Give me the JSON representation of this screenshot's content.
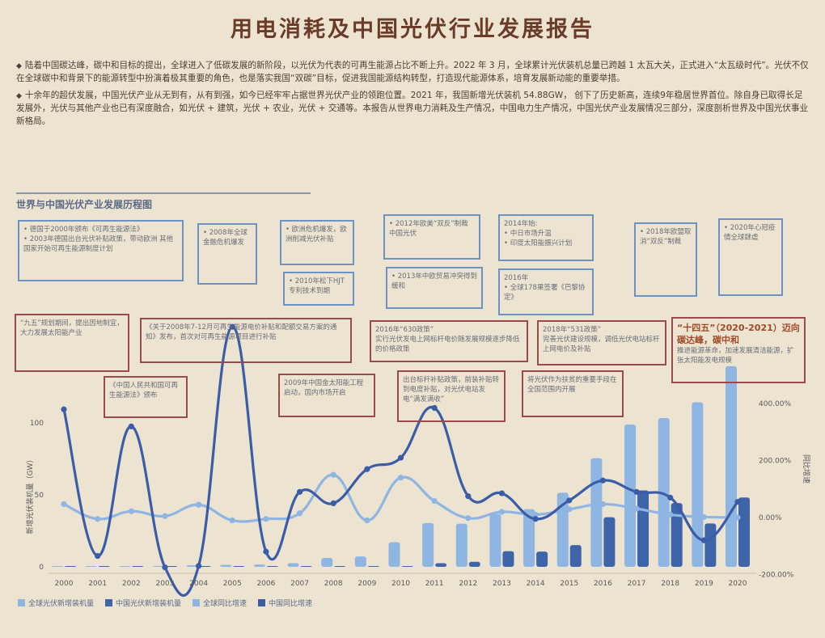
{
  "title": "用电消耗及中国光伏行业发展报告",
  "intro": {
    "para1": "陆着中国碳达峰，碳中和目标的提出，全球进入了低碳发展的新阶段，以光伏为代表的可再生能源占比不断上升。2022 年 3 月，全球累计光伏装机总量已跨越 1 太瓦大关，正式进入“太瓦级时代”。光伏不仅在全球碳中和背景下的能源转型中扮演着极其重要的角色，也是落实我国“双碳”目标，促进我国能源结构转型，打造现代能源体系，培育发展新动能的重要举措。",
    "para2": "十余年的超伏发展，中国光伏产业从无到有，从有到强，如今已经牢牢占据世界光伏产业的领跑位置。2021 年，我国新增光伏装机 54.88GW， 创下了历史新高，连续9年稳居世界首位。除自身已取得长足发展外，光伏与其他产业也已有深度融合，如光伏 + 建筑，光伏 + 农业，光伏 + 交通等。本报告从世界电力消耗及生产情况，中国电力生产情况，中国光伏产业发展情况三部分，深度剖析世界及中国光伏事业新格局。"
  },
  "section_title": "世界与中国光伏产业发展历程图",
  "blue_boxes": [
    {
      "lines": [
        "• 德国于2000年颁布《可再生能源法》",
        "• 2003年德国出台光伏补贴政策，带动欧洲 其他国家开始可再生能源制度计划"
      ]
    },
    {
      "lines": [
        "• 2008年全球金融危机爆发"
      ]
    },
    {
      "lines": [
        "• 欧洲危机爆发，欧洲削减光伏补贴"
      ]
    },
    {
      "lines": [
        "• 2010年松下HJT专利技术到期"
      ]
    },
    {
      "lines": [
        "• 2012年欧美“双反”制裁中国光伏"
      ]
    },
    {
      "lines": [
        "• 2013年中欧贸易冲突得到缓和"
      ]
    },
    {
      "lines": [
        "2014年始:",
        "• 中日市场升温",
        "• 印度太阳能振兴计划"
      ]
    },
    {
      "lines": [
        "2016年",
        "• 全球178果签署《巴黎协定》"
      ]
    },
    {
      "lines": [
        "• 2018年欧盟取消“双反”制裁"
      ]
    },
    {
      "lines": [
        "• 2020年心冠疫情全球肆虐"
      ]
    }
  ],
  "red_boxes": [
    {
      "lines": [
        "“九五”规划期间，提出因地制宜，大力发展太阳能产业"
      ]
    },
    {
      "lines": [
        "《关于2008年7-12月可再生能源电价补贴和配额交易方案的通知》发布，首次对可再生能源项目进行补贴"
      ]
    },
    {
      "lines": [
        "《中国人民共和国可再生能源法》颁布"
      ]
    },
    {
      "lines": [
        "2009年中国金太阳能工程启动，国内市场开启"
      ]
    },
    {
      "lines": [
        "2016年“630政策”",
        "实行光伏发电上网标杆电价随发展规模逐步降低的价格政策"
      ]
    },
    {
      "lines": [
        "出台标杆补贴政策，前装补贴转到电度补贴，对光伏电站发电“满发满收”"
      ]
    },
    {
      "lines": [
        "2018年“531政策”",
        "完善光伏建设规模，调低光伏电站标杆上网电价及补贴"
      ]
    },
    {
      "lines": [
        "将光伏作为扶贫的重要手段在全国范围内开展"
      ]
    },
    {
      "headline": "“十四五”（2020-2021）迈向碳达峰，碳中和",
      "lines": [
        "推进能源革命，加速发展清洁能源，扩张太阳能发电规模"
      ]
    }
  ],
  "chart_data": {
    "type": "bar",
    "categories": [
      "2000",
      "2001",
      "2002",
      "2003",
      "2004",
      "2005",
      "2006",
      "2007",
      "2008",
      "2009",
      "2010",
      "2011",
      "2012",
      "2013",
      "2014",
      "2015",
      "2016",
      "2017",
      "2018",
      "2019",
      "2020"
    ],
    "ylim_left": [
      0,
      100
    ],
    "yticks_left": [
      0,
      50,
      100
    ],
    "ylabel_left": "新增光伏装机量（GW）",
    "ylim_right": [
      -200,
      400
    ],
    "yticks_right": [
      "-200.00%",
      "0.00%",
      "200.00%",
      "400.00%"
    ],
    "ylabel_right": "同比增速",
    "series": [
      {
        "name": "全球光伏新增装机量",
        "kind": "bar",
        "color": "#8fb6e3",
        "values": [
          0.3,
          0.3,
          0.4,
          0.6,
          1.1,
          1.4,
          1.6,
          2.5,
          6.2,
          7.2,
          17.1,
          30.4,
          30.0,
          36.7,
          40.1,
          51.5,
          75.5,
          98.9,
          103.4,
          114.3,
          139.4
        ]
      },
      {
        "name": "中国光伏新增装机量",
        "kind": "bar",
        "color": "#3e64aa",
        "values": [
          0.01,
          0.01,
          0.02,
          0.01,
          0.01,
          0.01,
          0.01,
          0.02,
          0.05,
          0.16,
          0.5,
          2.5,
          3.5,
          10.9,
          10.6,
          15.1,
          34.5,
          53.1,
          44.3,
          30.1,
          48.2
        ]
      },
      {
        "name": "全球同比增速",
        "kind": "line",
        "color": "#8fb6e3",
        "values": [
          47,
          -5,
          22,
          5,
          45,
          -10,
          -5,
          15,
          150,
          -10,
          140,
          58,
          -2,
          20,
          10,
          29,
          47,
          31,
          10,
          2,
          0
        ]
      },
      {
        "name": "中国同比增速",
        "kind": "line",
        "color": "#3b5da8",
        "values": [
          380,
          -135,
          320,
          -175,
          -170,
          670,
          -120,
          90,
          50,
          170,
          210,
          385,
          75,
          85,
          -5,
          60,
          130,
          90,
          70,
          -80,
          55
        ]
      }
    ]
  },
  "colors": {
    "background": "#ece3d1",
    "title": "#6a3b28",
    "blue_box": "#6e92c4",
    "red_box": "#9b4a4a"
  }
}
